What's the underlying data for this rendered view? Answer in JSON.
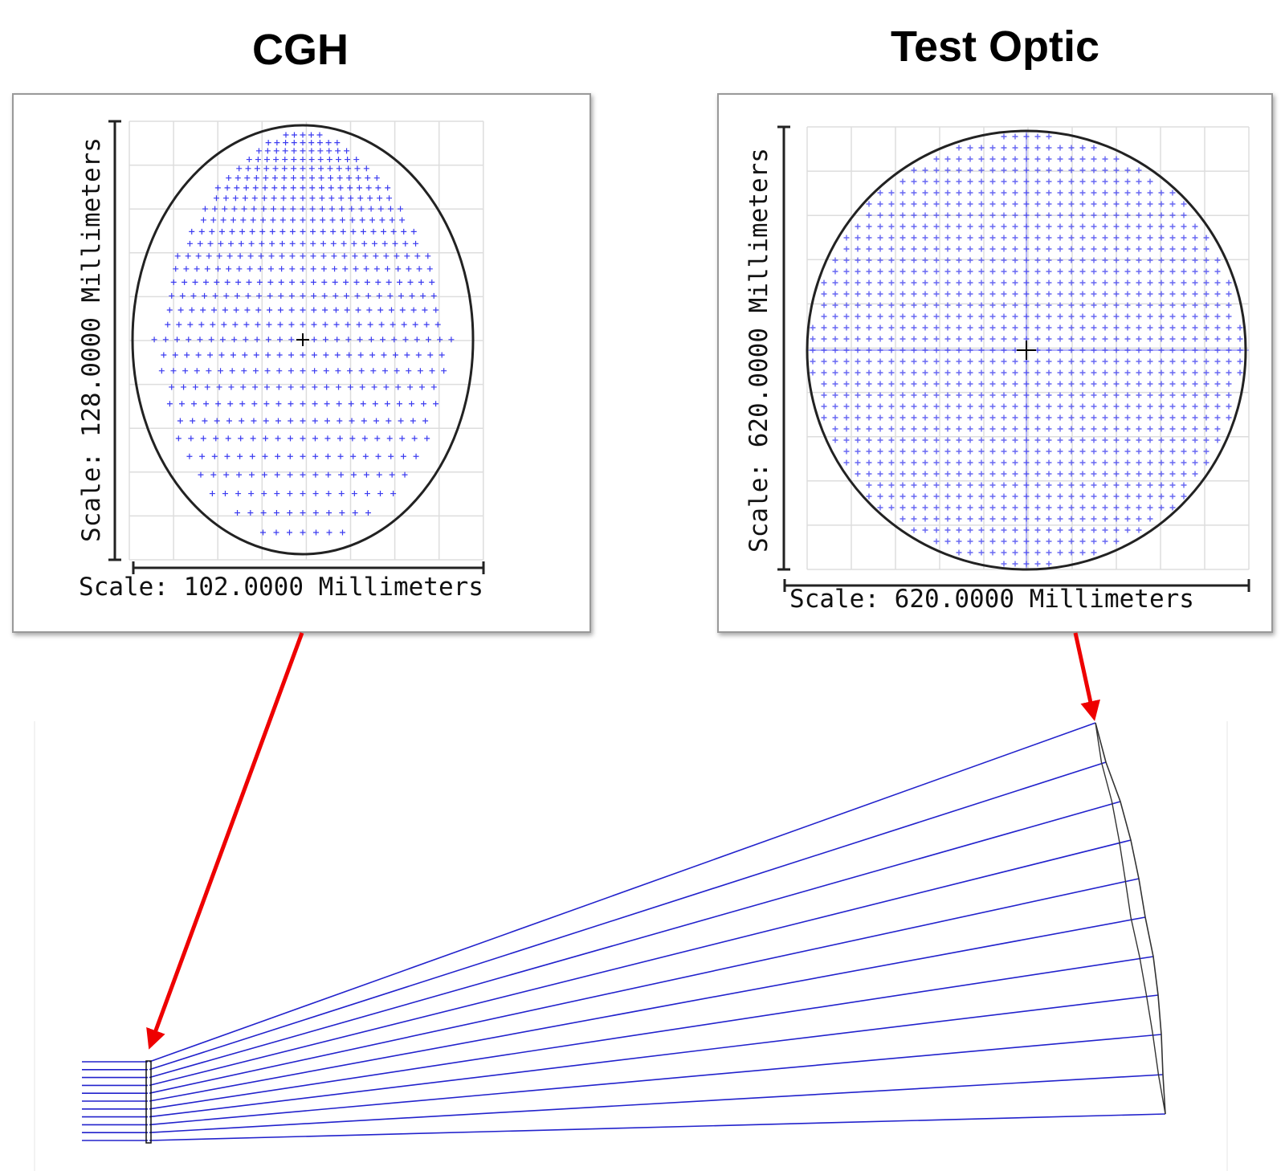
{
  "panels": [
    {
      "title": "CGH",
      "y_scale": "Scale: 128.0000 Millimeters",
      "x_scale": "Scale: 102.0000 Millimeters"
    },
    {
      "title": "Test Optic",
      "y_scale": "Scale: 620.0000 Millimeters",
      "x_scale": "Scale: 620.0000 Millimeters"
    }
  ]
}
